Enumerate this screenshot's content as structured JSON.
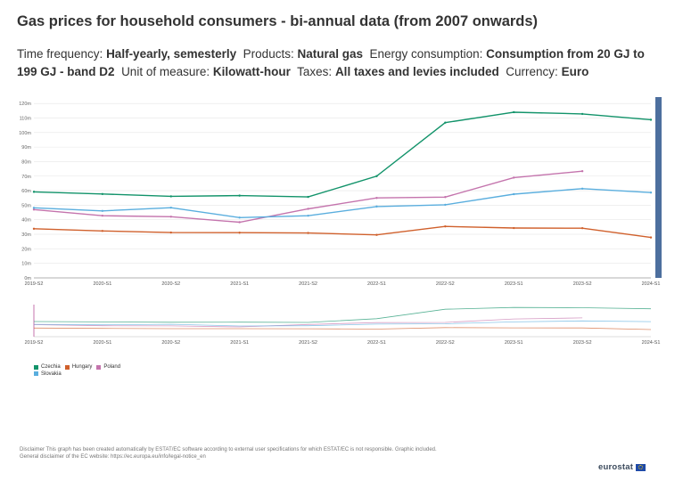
{
  "title": "Gas prices for household consumers - bi-annual data (from 2007 onwards)",
  "filters": [
    {
      "label": "Time frequency:",
      "value": "Half-yearly, semesterly"
    },
    {
      "label": "Products:",
      "value": "Natural gas"
    },
    {
      "label": "Energy consumption:",
      "value": "Consumption from 20 GJ to 199 GJ - band D2"
    },
    {
      "label": "Unit of measure:",
      "value": "Kilowatt-hour"
    },
    {
      "label": "Taxes:",
      "value": "All taxes and levies included"
    },
    {
      "label": "Currency:",
      "value": "Euro"
    }
  ],
  "chart_data": {
    "type": "line",
    "categories": [
      "2019-S2",
      "2020-S1",
      "2020-S2",
      "2021-S1",
      "2021-S2",
      "2022-S1",
      "2022-S2",
      "2023-S1",
      "2023-S2",
      "2024-S1"
    ],
    "ytick_labels": [
      "0m",
      "10m",
      "20m",
      "30m",
      "40m",
      "50m",
      "60m",
      "70m",
      "80m",
      "90m",
      "100m",
      "110m",
      "120m"
    ],
    "ylim": [
      0,
      0.125
    ],
    "series": [
      {
        "name": "Czechia",
        "color": "#12936a",
        "values": [
          0.0592,
          0.0577,
          0.0561,
          0.0566,
          0.0557,
          0.07,
          0.1068,
          0.114,
          0.1128,
          0.1088
        ]
      },
      {
        "name": "Hungary",
        "color": "#d0602c",
        "values": [
          0.0338,
          0.0323,
          0.0312,
          0.0311,
          0.0309,
          0.0296,
          0.0354,
          0.0343,
          0.0342,
          0.0278
        ]
      },
      {
        "name": "Poland",
        "color": "#c474ad",
        "values": [
          0.047,
          0.0428,
          0.0421,
          0.0383,
          0.0475,
          0.055,
          0.0556,
          0.069,
          0.0734,
          null
        ]
      },
      {
        "name": "Slovakia",
        "color": "#5aaede",
        "values": [
          0.0482,
          0.0461,
          0.0483,
          0.0415,
          0.0428,
          0.0491,
          0.0503,
          0.0576,
          0.0614,
          0.0587
        ]
      }
    ],
    "grid": true,
    "legend_position": "bottom-left"
  },
  "disclaimer": [
    "Disclaimer This graph has been created automatically by ESTAT/EC software according to external user specifications for which ESTAT/EC is not responsible. Graphic included.",
    "General disclaimer of the EC website: https://ec.europa.eu/info/legal-notice_en"
  ],
  "logo_text": "eurostat"
}
